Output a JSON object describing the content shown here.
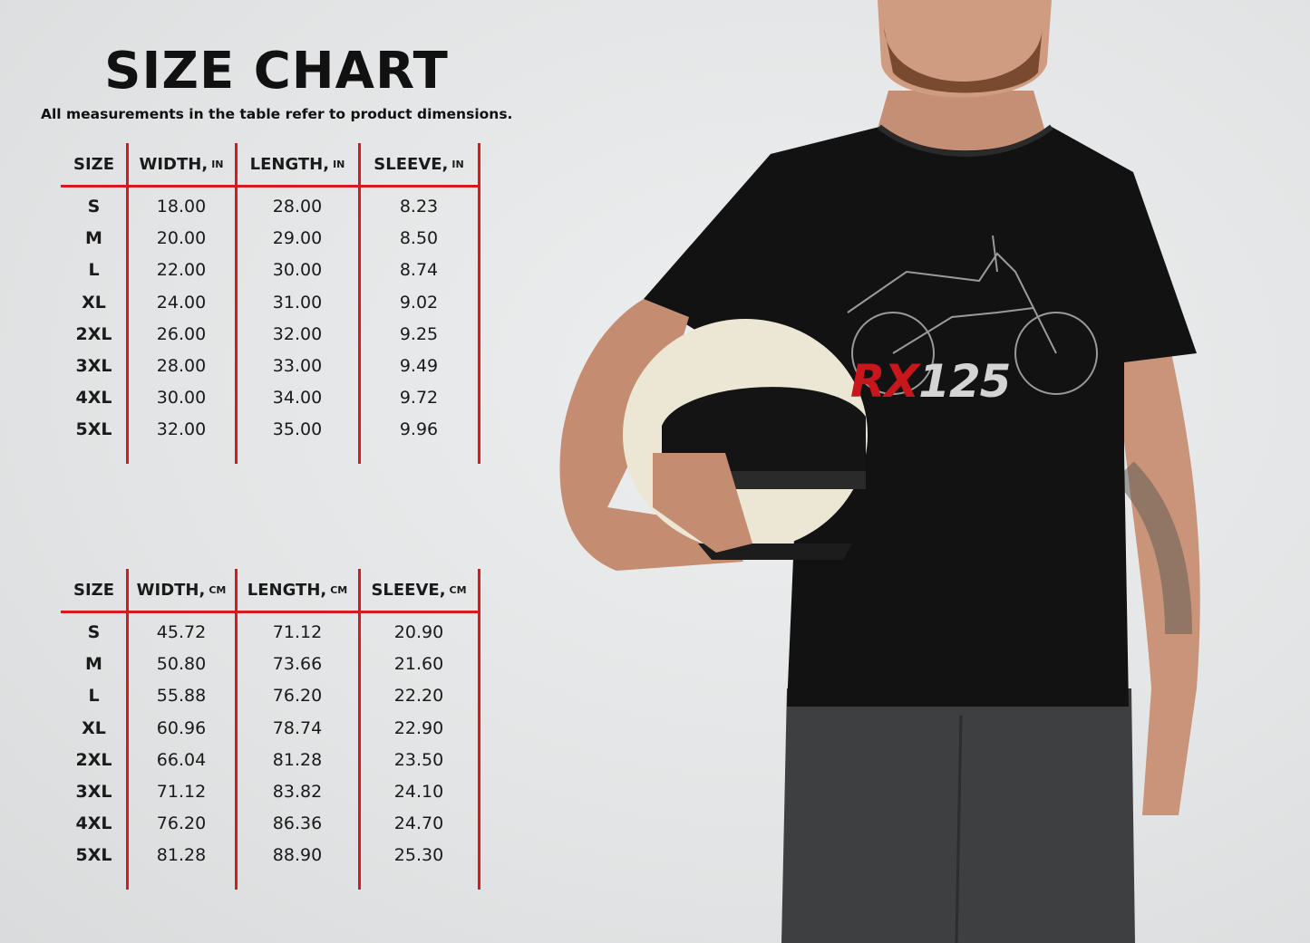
{
  "title": "SIZE CHART",
  "subtitle": "All measurements in the table refer to product dimensions.",
  "accent_color": "#d71920",
  "chart_data": [
    {
      "type": "table",
      "unit": "IN",
      "columns": [
        {
          "label": "SIZE",
          "unit": ""
        },
        {
          "label": "WIDTH,",
          "unit": "IN"
        },
        {
          "label": "LENGTH,",
          "unit": "IN"
        },
        {
          "label": "SLEEVE,",
          "unit": "IN"
        }
      ],
      "rows": [
        [
          "S",
          "18.00",
          "28.00",
          "8.23"
        ],
        [
          "M",
          "20.00",
          "29.00",
          "8.50"
        ],
        [
          "L",
          "22.00",
          "30.00",
          "8.74"
        ],
        [
          "XL",
          "24.00",
          "31.00",
          "9.02"
        ],
        [
          "2XL",
          "26.00",
          "32.00",
          "9.25"
        ],
        [
          "3XL",
          "28.00",
          "33.00",
          "9.49"
        ],
        [
          "4XL",
          "30.00",
          "34.00",
          "9.72"
        ],
        [
          "5XL",
          "32.00",
          "35.00",
          "9.96"
        ]
      ]
    },
    {
      "type": "table",
      "unit": "CM",
      "columns": [
        {
          "label": "SIZE",
          "unit": ""
        },
        {
          "label": "WIDTH,",
          "unit": "CM"
        },
        {
          "label": "LENGTH,",
          "unit": "CM"
        },
        {
          "label": "SLEEVE,",
          "unit": "CM"
        }
      ],
      "rows": [
        [
          "S",
          "45.72",
          "71.12",
          "20.90"
        ],
        [
          "M",
          "50.80",
          "73.66",
          "21.60"
        ],
        [
          "L",
          "55.88",
          "76.20",
          "22.20"
        ],
        [
          "XL",
          "60.96",
          "78.74",
          "22.90"
        ],
        [
          "2XL",
          "66.04",
          "81.28",
          "23.50"
        ],
        [
          "3XL",
          "71.12",
          "83.82",
          "24.10"
        ],
        [
          "4XL",
          "76.20",
          "86.36",
          "24.70"
        ],
        [
          "5XL",
          "81.28",
          "88.90",
          "25.30"
        ]
      ]
    }
  ],
  "product": {
    "logo_red": "RX",
    "logo_grey": "125",
    "shirt_color": "#111111",
    "logo_red_color": "#c8161d"
  }
}
